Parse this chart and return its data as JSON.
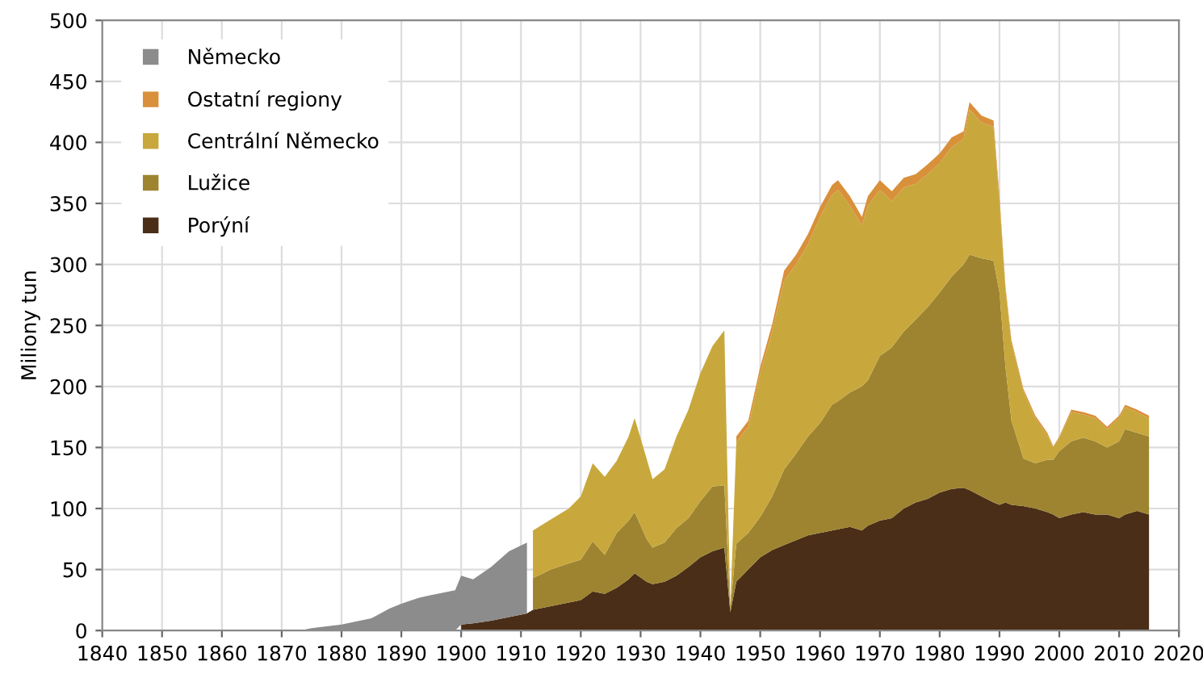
{
  "chart_data": {
    "type": "area",
    "stacked": true,
    "ylabel": "Miliony tun",
    "x": [
      1840,
      1873,
      1875,
      1880,
      1885,
      1888,
      1890,
      1893,
      1895,
      1898,
      1899,
      1900,
      1902,
      1905,
      1908,
      1911,
      1912,
      1915,
      1918,
      1920,
      1922,
      1924,
      1926,
      1928,
      1929,
      1931,
      1932,
      1934,
      1936,
      1938,
      1940,
      1942,
      1944,
      1945,
      1946,
      1948,
      1950,
      1952,
      1954,
      1956,
      1958,
      1960,
      1962,
      1963,
      1965,
      1967,
      1968,
      1970,
      1972,
      1974,
      1976,
      1978,
      1980,
      1982,
      1984,
      1985,
      1987,
      1989,
      1990,
      1991,
      1992,
      1994,
      1996,
      1998,
      1999,
      2000,
      2002,
      2004,
      2006,
      2008,
      2010,
      2011,
      2013,
      2015
    ],
    "series": [
      {
        "name": "Porýní",
        "color": "#4a2e17",
        "values": [
          null,
          null,
          null,
          null,
          null,
          null,
          null,
          null,
          null,
          null,
          null,
          5,
          6,
          8,
          11,
          14,
          17,
          20,
          23,
          25,
          32,
          30,
          35,
          42,
          47,
          40,
          38,
          40,
          45,
          52,
          60,
          65,
          68,
          15,
          40,
          50,
          60,
          66,
          70,
          74,
          78,
          80,
          82,
          83,
          85,
          82,
          86,
          90,
          92,
          100,
          105,
          108,
          113,
          116,
          117,
          115,
          110,
          105,
          103,
          105,
          103,
          102,
          100,
          97,
          95,
          92,
          95,
          97,
          95,
          95,
          92,
          95,
          98,
          95
        ]
      },
      {
        "name": "Lužice",
        "color": "#9e8430",
        "values": [
          null,
          null,
          null,
          null,
          null,
          null,
          null,
          null,
          null,
          null,
          null,
          null,
          null,
          null,
          null,
          null,
          26,
          30,
          32,
          33,
          41,
          32,
          45,
          48,
          50,
          35,
          30,
          32,
          39,
          40,
          46,
          53,
          51,
          3,
          31,
          30,
          33,
          44,
          62,
          71,
          81,
          90,
          103,
          105,
          110,
          118,
          119,
          135,
          140,
          145,
          150,
          157,
          164,
          174,
          183,
          193,
          195,
          198,
          174,
          111,
          69,
          39,
          37,
          43,
          45,
          55,
          60,
          61,
          60,
          55,
          63,
          70,
          64,
          64
        ]
      },
      {
        "name": "Centrální Německo",
        "color": "#c8a83c",
        "values": [
          null,
          null,
          null,
          null,
          null,
          null,
          null,
          null,
          null,
          null,
          null,
          null,
          null,
          null,
          null,
          null,
          39,
          41,
          45,
          52,
          64,
          64,
          59,
          69,
          77,
          66,
          56,
          60,
          75,
          89,
          105,
          115,
          127,
          2,
          83,
          87,
          118,
          135,
          155,
          155,
          158,
          169,
          172,
          173,
          153,
          132,
          143,
          136,
          120,
          118,
          111,
          109,
          106,
          106,
          103,
          119,
          111,
          110,
          75,
          63,
          64,
          55,
          37,
          20,
          10,
          11,
          24,
          19,
          19,
          15,
          19,
          18,
          17,
          15
        ]
      },
      {
        "name": "Ostatní regiony",
        "color": "#d9903a",
        "values": [
          null,
          null,
          null,
          null,
          null,
          null,
          null,
          null,
          null,
          null,
          null,
          null,
          null,
          null,
          null,
          null,
          null,
          null,
          null,
          null,
          null,
          null,
          null,
          null,
          null,
          null,
          null,
          null,
          null,
          null,
          null,
          null,
          null,
          null,
          5,
          5,
          5,
          6,
          8,
          8,
          8,
          8,
          8,
          8,
          8,
          7,
          8,
          8,
          8,
          8,
          8,
          8,
          8,
          8,
          6,
          6,
          6,
          5,
          4,
          3,
          2,
          2,
          2,
          2,
          1,
          1,
          2,
          2,
          2,
          2,
          2,
          2,
          2,
          2
        ]
      },
      {
        "name": "Německo",
        "color": "#8c8c8c",
        "values": [
          0,
          0,
          2,
          5,
          10,
          18,
          22,
          27,
          29,
          32,
          33,
          40,
          36,
          44,
          54,
          58,
          null,
          null,
          null,
          null,
          null,
          null,
          null,
          null,
          null,
          null,
          null,
          null,
          null,
          null,
          null,
          null,
          null,
          null,
          null,
          null,
          null,
          null,
          null,
          null,
          null,
          null,
          null,
          null,
          null,
          null,
          null,
          null,
          null,
          null,
          null,
          null,
          null,
          null,
          null,
          null,
          null,
          null,
          null,
          null,
          null,
          null,
          null,
          null,
          null,
          null,
          null,
          null,
          null,
          null,
          null,
          null,
          null,
          null
        ]
      }
    ],
    "xlim": [
      1840,
      2020
    ],
    "xticks": [
      1840,
      1850,
      1860,
      1870,
      1880,
      1890,
      1900,
      1910,
      1920,
      1930,
      1940,
      1950,
      1960,
      1970,
      1980,
      1990,
      2000,
      2010,
      2020
    ],
    "ylim": [
      0,
      500
    ],
    "yticks": [
      0,
      50,
      100,
      150,
      200,
      250,
      300,
      350,
      400,
      450,
      500
    ],
    "grid": true,
    "legend": "top left"
  }
}
